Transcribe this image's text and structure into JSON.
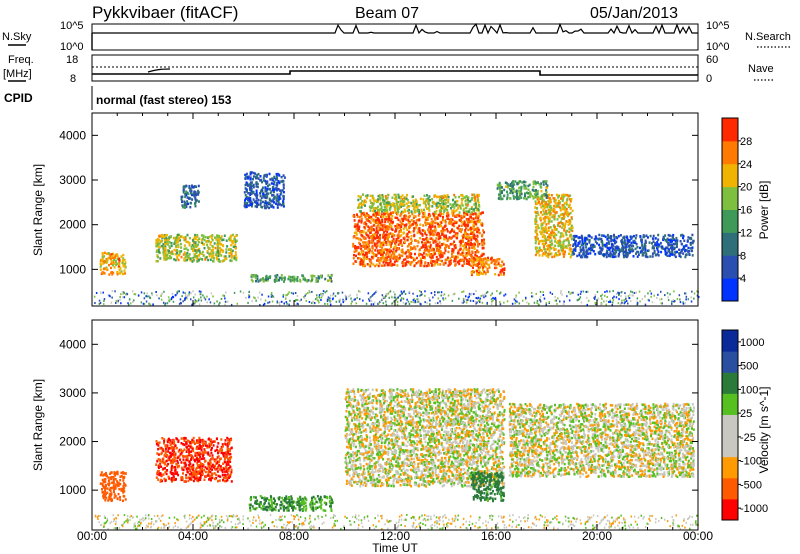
{
  "header": {
    "title": "Pykkvibaer (fitACF)",
    "beam": "Beam 07",
    "date": "05/Jan/2013"
  },
  "panels": {
    "nsky": {
      "label": "N.Sky",
      "ticks": [
        "10^5",
        "10^0"
      ],
      "right_label": "N.Search",
      "right_ticks": [
        "10^5",
        "10^0"
      ]
    },
    "freq": {
      "label_top": "Freq.",
      "label_bottom": "[MHz]",
      "ticks": [
        "18",
        "8"
      ],
      "right_label": "Nave",
      "right_ticks": [
        "60",
        "0"
      ]
    },
    "cpid": {
      "label": "CPID",
      "text": "normal (fast stereo) 153"
    }
  },
  "chart_data": [
    {
      "type": "heatmap",
      "panel": "power",
      "ylabel": "Slant Range [km]",
      "yticks": [
        "4000",
        "3000",
        "2000",
        "1000"
      ],
      "ylim": [
        180,
        4500
      ],
      "colorbar": {
        "label": "Power [dB]",
        "ticks": [
          "28",
          "24",
          "20",
          "16",
          "12",
          "8",
          "4"
        ],
        "range": [
          0,
          30
        ],
        "colors": [
          "#0033ff",
          "#2a4fb0",
          "#2e6f7a",
          "#3f9a5a",
          "#7fbf3f",
          "#f0b400",
          "#ff7a00",
          "#ff2a00"
        ]
      },
      "echo_regions": [
        {
          "time_range_h": [
            0.3,
            1.3
          ],
          "range_km": [
            900,
            1400
          ],
          "power_db": 22
        },
        {
          "time_range_h": [
            2.5,
            5.7
          ],
          "range_km": [
            1200,
            1800
          ],
          "power_db": 18
        },
        {
          "time_range_h": [
            3.5,
            4.2
          ],
          "range_km": [
            2400,
            2900
          ],
          "power_db": 8
        },
        {
          "time_range_h": [
            6.0,
            7.6
          ],
          "range_km": [
            2400,
            3200
          ],
          "power_db": 6
        },
        {
          "time_range_h": [
            6.2,
            9.5
          ],
          "range_km": [
            750,
            900
          ],
          "power_db": 14
        },
        {
          "time_range_h": [
            10.3,
            15.5
          ],
          "range_km": [
            1100,
            2300
          ],
          "power_db": 26
        },
        {
          "time_range_h": [
            10.5,
            15.3
          ],
          "range_km": [
            2300,
            2700
          ],
          "power_db": 18
        },
        {
          "time_range_h": [
            15.0,
            16.3
          ],
          "range_km": [
            900,
            1300
          ],
          "power_db": 24
        },
        {
          "time_range_h": [
            17.5,
            19.0
          ],
          "range_km": [
            1300,
            2700
          ],
          "power_db": 20
        },
        {
          "time_range_h": [
            16.0,
            18.0
          ],
          "range_km": [
            2600,
            3000
          ],
          "power_db": 14
        },
        {
          "time_range_h": [
            19.0,
            23.8
          ],
          "range_km": [
            1300,
            1800
          ],
          "power_db": 6
        }
      ]
    },
    {
      "type": "heatmap",
      "panel": "velocity",
      "ylabel": "Slant Range [km]",
      "xlabel": "Time UT",
      "xticks": [
        "00:00",
        "04:00",
        "08:00",
        "12:00",
        "16:00",
        "20:00",
        "00:00"
      ],
      "yticks": [
        "4000",
        "3000",
        "2000",
        "1000"
      ],
      "ylim": [
        180,
        4500
      ],
      "colorbar": {
        "label": "Velocity [m s^-1]",
        "ticks": [
          "1000",
          "500",
          "100",
          "25",
          "-25",
          "-100",
          "-500",
          "-1000"
        ],
        "range": [
          -1000,
          1000
        ],
        "colors": [
          "#ff0000",
          "#ff5a00",
          "#ff9a00",
          "#c8c8c0",
          "#c8c8c0",
          "#55c020",
          "#2a7a3a",
          "#2a4fa0",
          "#0a2a9a"
        ]
      },
      "echo_regions": [
        {
          "time_range_h": [
            0.3,
            1.3
          ],
          "range_km": [
            800,
            1400
          ],
          "velocity_ms": -400
        },
        {
          "time_range_h": [
            2.5,
            5.5
          ],
          "range_km": [
            1200,
            2100
          ],
          "velocity_ms": -500
        },
        {
          "time_range_h": [
            6.2,
            9.5
          ],
          "range_km": [
            600,
            900
          ],
          "velocity_ms": 100
        },
        {
          "time_range_h": [
            10.0,
            16.3
          ],
          "range_km": [
            1100,
            3100
          ],
          "velocity_ms": 0
        },
        {
          "time_range_h": [
            15.0,
            16.3
          ],
          "range_km": [
            800,
            1400
          ],
          "velocity_ms": 150
        },
        {
          "time_range_h": [
            16.5,
            23.8
          ],
          "range_km": [
            1300,
            2800
          ],
          "velocity_ms": 0
        }
      ]
    }
  ]
}
